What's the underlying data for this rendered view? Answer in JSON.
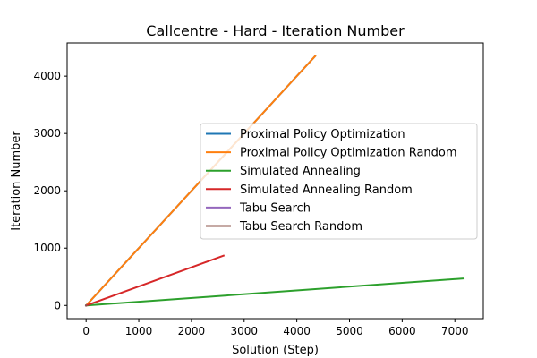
{
  "chart_data": {
    "type": "line",
    "title": "Callcentre - Hard - Iteration Number",
    "xlabel": "Solution (Step)",
    "ylabel": "Iteration Number",
    "xlim": [
      -360,
      7540
    ],
    "ylim": [
      -230,
      4580
    ],
    "xticks": [
      0,
      1000,
      2000,
      3000,
      4000,
      5000,
      6000,
      7000
    ],
    "yticks": [
      0,
      1000,
      2000,
      3000,
      4000
    ],
    "grid": false,
    "legend_position": "center-right",
    "series": [
      {
        "name": "Proximal Policy Optimization",
        "color": "#1f77b4",
        "x": [
          0,
          4350
        ],
        "y": [
          0,
          4350
        ]
      },
      {
        "name": "Proximal Policy Optimization Random",
        "color": "#ff7f0e",
        "x": [
          0,
          4350
        ],
        "y": [
          0,
          4350
        ]
      },
      {
        "name": "Simulated Annealing",
        "color": "#2ca02c",
        "x": [
          0,
          7150
        ],
        "y": [
          0,
          470
        ]
      },
      {
        "name": "Simulated Annealing Random",
        "color": "#d62728",
        "x": [
          0,
          2610
        ],
        "y": [
          0,
          870
        ]
      },
      {
        "name": "Tabu Search",
        "color": "#9467bd",
        "x": [
          0,
          0
        ],
        "y": [
          0,
          0
        ]
      },
      {
        "name": "Tabu Search Random",
        "color": "#8c564b",
        "x": [
          0,
          0
        ],
        "y": [
          0,
          0
        ]
      }
    ]
  }
}
